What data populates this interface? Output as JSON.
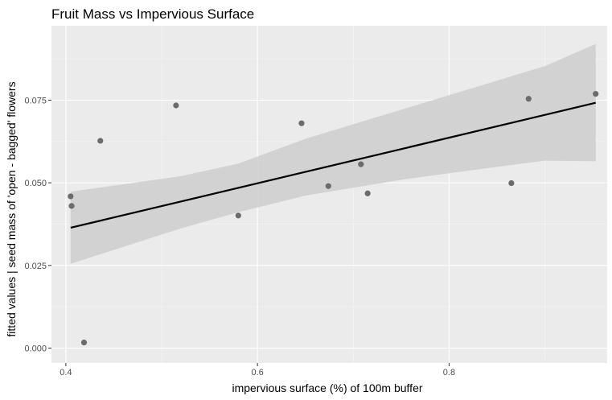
{
  "chart_data": {
    "type": "scatter",
    "title": "Fruit Mass vs Impervious Surface",
    "xlabel": "impervious surface (%) of 100m buffer",
    "ylabel": "fitted values | seed mass of 'open - bagged' flowers",
    "xlim": [
      0.385,
      0.965
    ],
    "ylim": [
      -0.0045,
      0.0975
    ],
    "xticks": [
      0.4,
      0.6,
      0.8
    ],
    "xtick_labels": [
      "0.4",
      "0.6",
      "0.8"
    ],
    "yticks": [
      0.0,
      0.025,
      0.05,
      0.075
    ],
    "ytick_labels": [
      "0.000",
      "0.025",
      "0.050",
      "0.075"
    ],
    "grid": true,
    "points": [
      {
        "x": 0.405,
        "y": 0.0459
      },
      {
        "x": 0.406,
        "y": 0.043
      },
      {
        "x": 0.419,
        "y": 0.0017
      },
      {
        "x": 0.436,
        "y": 0.0627
      },
      {
        "x": 0.515,
        "y": 0.0734
      },
      {
        "x": 0.58,
        "y": 0.0401
      },
      {
        "x": 0.646,
        "y": 0.068
      },
      {
        "x": 0.674,
        "y": 0.049
      },
      {
        "x": 0.708,
        "y": 0.0556
      },
      {
        "x": 0.715,
        "y": 0.0468
      },
      {
        "x": 0.865,
        "y": 0.0499
      },
      {
        "x": 0.883,
        "y": 0.0754
      },
      {
        "x": 0.953,
        "y": 0.0769
      }
    ],
    "fit_line": {
      "x": [
        0.405,
        0.953
      ],
      "y": [
        0.0364,
        0.0742
      ]
    },
    "confidence_band": {
      "x": [
        0.405,
        0.52,
        0.58,
        0.65,
        0.7,
        0.75,
        0.8,
        0.85,
        0.9,
        0.953
      ],
      "lower": [
        0.0255,
        0.0362,
        0.0411,
        0.0461,
        0.0485,
        0.0509,
        0.0529,
        0.0548,
        0.0567,
        0.0565
      ],
      "upper": [
        0.0473,
        0.052,
        0.0558,
        0.0633,
        0.0677,
        0.0721,
        0.0765,
        0.0809,
        0.0853,
        0.092
      ]
    },
    "colors": {
      "panel_background": "#ebebeb",
      "grid_major": "#ffffff",
      "grid_minor": "#f5f5f5",
      "point": "#6b6b6b",
      "line": "#000000",
      "band": "#cfcfcf"
    }
  }
}
